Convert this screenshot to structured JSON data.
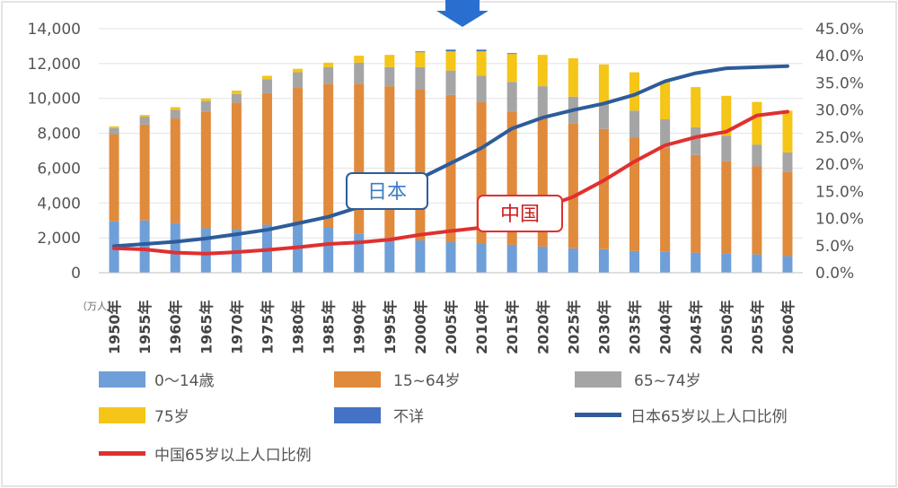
{
  "chart_data": {
    "type": "bar",
    "stacked": true,
    "unit_label": "（万人）",
    "categories": [
      "1950年",
      "1955年",
      "1960年",
      "1965年",
      "1970年",
      "1975年",
      "1980年",
      "1985年",
      "1990年",
      "1995年",
      "2000年",
      "2005年",
      "2010年",
      "2015年",
      "2020年",
      "2025年",
      "2030年",
      "2035年",
      "2040年",
      "2045年",
      "2050年",
      "2055年",
      "2060年"
    ],
    "series": [
      {
        "name": "0～14歳",
        "color": "#6f9fd8",
        "values": [
          2950,
          3000,
          2850,
          2550,
          2500,
          2750,
          2750,
          2600,
          2250,
          2000,
          1850,
          1750,
          1700,
          1600,
          1500,
          1400,
          1350,
          1250,
          1200,
          1150,
          1100,
          1050,
          950
        ]
      },
      {
        "name": "15~64岁",
        "color": "#e08a3c",
        "values": [
          5000,
          5500,
          6000,
          6700,
          7250,
          7550,
          7850,
          8250,
          8600,
          8700,
          8650,
          8450,
          8100,
          7650,
          7450,
          7150,
          6900,
          6500,
          5950,
          5600,
          5300,
          5050,
          4850
        ]
      },
      {
        "name": "65~74岁",
        "color": "#a5a5a5",
        "values": [
          350,
          450,
          500,
          600,
          500,
          800,
          900,
          950,
          1200,
          1100,
          1300,
          1400,
          1500,
          1700,
          1750,
          1550,
          1450,
          1550,
          1650,
          1600,
          1450,
          1250,
          1100
        ]
      },
      {
        "name": "75岁",
        "color": "#f5c518",
        "values": [
          100,
          100,
          150,
          150,
          200,
          200,
          200,
          250,
          400,
          700,
          850,
          1100,
          1400,
          1600,
          1800,
          2200,
          2250,
          2200,
          2200,
          2300,
          2300,
          2450,
          2400
        ]
      },
      {
        "name": "不详",
        "color": "#4472c4",
        "values": [
          0,
          0,
          0,
          0,
          0,
          0,
          0,
          0,
          0,
          0,
          50,
          100,
          100,
          50,
          0,
          0,
          0,
          0,
          0,
          0,
          0,
          0,
          0
        ]
      }
    ],
    "lines": [
      {
        "name": "日本65岁以上人口比例",
        "color": "#2e5c9a",
        "values": [
          4.9,
          5.3,
          5.7,
          6.3,
          7.1,
          7.9,
          9.1,
          10.3,
          12.1,
          14.6,
          17.4,
          20.2,
          23.0,
          26.6,
          28.6,
          30.0,
          31.2,
          32.8,
          35.3,
          36.8,
          37.7,
          37.9,
          38.1
        ]
      },
      {
        "name": "中国65岁以上人口比例",
        "color": "#e03030",
        "values": [
          4.5,
          4.3,
          3.7,
          3.5,
          3.8,
          4.2,
          4.7,
          5.3,
          5.6,
          6.1,
          7.0,
          7.7,
          8.3,
          9.6,
          12.0,
          14.0,
          17.0,
          20.5,
          23.5,
          25.0,
          26.0,
          29.0,
          29.7
        ]
      }
    ],
    "yleft": {
      "min": 0,
      "max": 14000,
      "ticks": [
        "0",
        "2,000",
        "4,000",
        "6,000",
        "8,000",
        "10,000",
        "12,000",
        "14,000"
      ]
    },
    "yright": {
      "min": 0,
      "max": 45,
      "ticks": [
        "0.0%",
        "5.0%",
        "10.0%",
        "15.0%",
        "20.0%",
        "25.0%",
        "30.0%",
        "35.0%",
        "40.0%",
        "45.0%"
      ]
    },
    "callouts": {
      "japan": "日本",
      "china": "中国"
    },
    "legend": {
      "young": "0～14歳",
      "working": "15~64岁",
      "old65": "65~74岁",
      "old75": "75岁",
      "unknown": "不详",
      "japan_line": "日本65岁以上人口比例",
      "china_line": "中国65岁以上人口比例"
    },
    "grid": true
  }
}
